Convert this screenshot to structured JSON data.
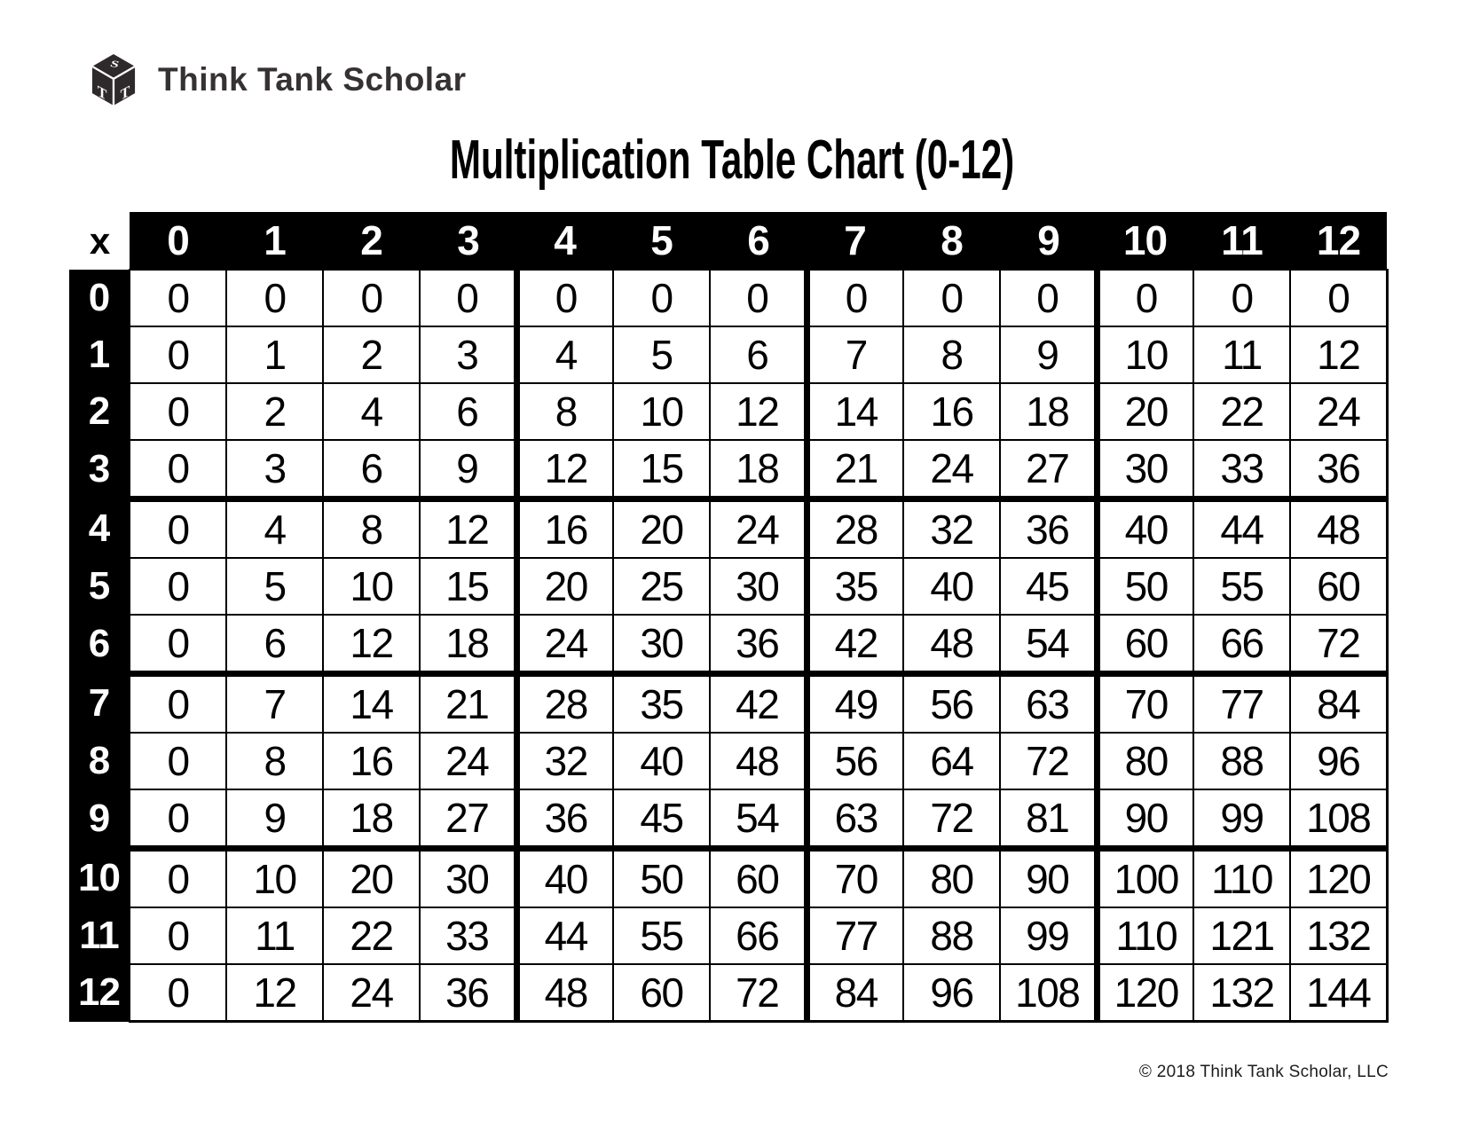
{
  "brand": {
    "logo_text": "Think Tank Scholar",
    "cube_letters": {
      "top": "S",
      "left": "T",
      "right": "T"
    }
  },
  "title": "Multiplication Table Chart (0-12)",
  "footer": {
    "copyright": "© 2018 Think Tank Scholar, LLC"
  },
  "colors": {
    "table_header_bg": "#000000",
    "table_header_text": "#ffffff",
    "cell_bg": "#ffffff",
    "cell_text": "#000000",
    "logo_text": "#363132",
    "copyright_text": "#1c1c1c"
  },
  "chart_data": {
    "type": "table",
    "title": "Multiplication Table Chart (0-12)",
    "corner_label": "x",
    "column_headers": [
      "0",
      "1",
      "2",
      "3",
      "4",
      "5",
      "6",
      "7",
      "8",
      "9",
      "10",
      "11",
      "12"
    ],
    "row_headers": [
      "0",
      "1",
      "2",
      "3",
      "4",
      "5",
      "6",
      "7",
      "8",
      "9",
      "10",
      "11",
      "12"
    ],
    "rows": [
      [
        0,
        0,
        0,
        0,
        0,
        0,
        0,
        0,
        0,
        0,
        0,
        0,
        0
      ],
      [
        0,
        1,
        2,
        3,
        4,
        5,
        6,
        7,
        8,
        9,
        10,
        11,
        12
      ],
      [
        0,
        2,
        4,
        6,
        8,
        10,
        12,
        14,
        16,
        18,
        20,
        22,
        24
      ],
      [
        0,
        3,
        6,
        9,
        12,
        15,
        18,
        21,
        24,
        27,
        30,
        33,
        36
      ],
      [
        0,
        4,
        8,
        12,
        16,
        20,
        24,
        28,
        32,
        36,
        40,
        44,
        48
      ],
      [
        0,
        5,
        10,
        15,
        20,
        25,
        30,
        35,
        40,
        45,
        50,
        55,
        60
      ],
      [
        0,
        6,
        12,
        18,
        24,
        30,
        36,
        42,
        48,
        54,
        60,
        66,
        72
      ],
      [
        0,
        7,
        14,
        21,
        28,
        35,
        42,
        49,
        56,
        63,
        70,
        77,
        84
      ],
      [
        0,
        8,
        16,
        24,
        32,
        40,
        48,
        56,
        64,
        72,
        80,
        88,
        96
      ],
      [
        0,
        9,
        18,
        27,
        36,
        45,
        54,
        63,
        72,
        81,
        90,
        99,
        108
      ],
      [
        0,
        10,
        20,
        30,
        40,
        50,
        60,
        70,
        80,
        90,
        100,
        110,
        120
      ],
      [
        0,
        11,
        22,
        33,
        44,
        55,
        66,
        77,
        88,
        99,
        110,
        121,
        132
      ],
      [
        0,
        12,
        24,
        36,
        48,
        60,
        72,
        84,
        96,
        108,
        120,
        132,
        144
      ]
    ],
    "group_separator_after": [
      3,
      6,
      9
    ],
    "layout": {
      "grid": "13x13",
      "header_style": "black-bar",
      "legend": "none"
    }
  }
}
